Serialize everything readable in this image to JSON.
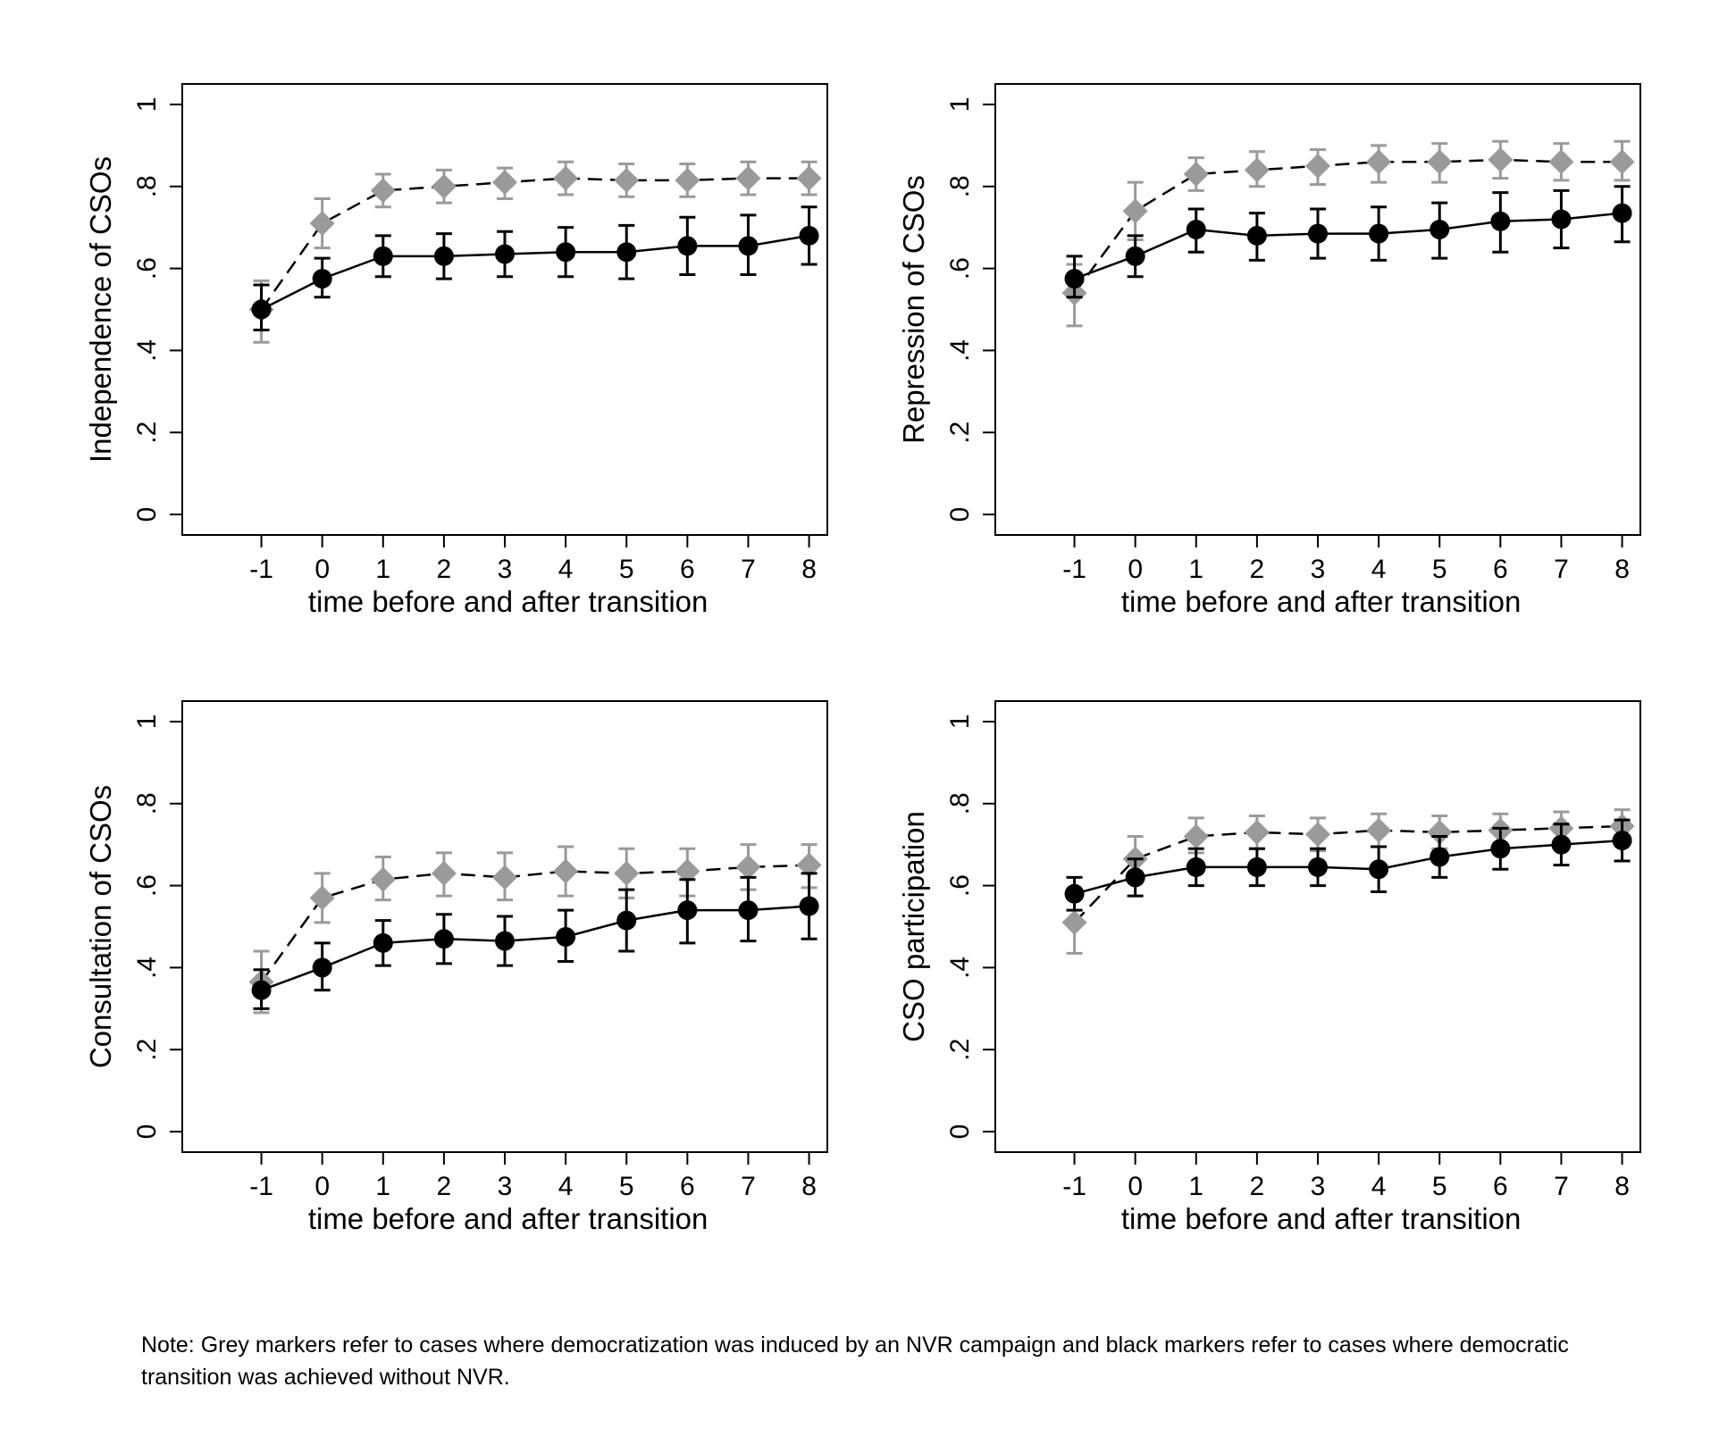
{
  "note": "Note: Grey markers refer to cases where democratization was induced by an NVR campaign and black markers refer to cases where democratic transition was achieved without NVR.",
  "colors": {
    "grey_series": "#9a9a9a",
    "black_series": "#000000",
    "frame": "#000000"
  },
  "chart_data": [
    {
      "type": "line",
      "ylabel": "Independence of CSOs",
      "xlabel": "time before and after transition",
      "x": [
        -1,
        0,
        1,
        2,
        3,
        4,
        5,
        6,
        7,
        8
      ],
      "x_tick_labels": [
        "-1",
        "0",
        "1",
        "2",
        "3",
        "4",
        "5",
        "6",
        "7",
        "8"
      ],
      "y_tick_labels": [
        "0",
        ".2",
        ".4",
        ".6",
        ".8",
        "1"
      ],
      "y_ticks": [
        0,
        0.2,
        0.4,
        0.6,
        0.8,
        1
      ],
      "ylim": [
        -0.05,
        1.05
      ],
      "xlim": [
        -2.3,
        8.3
      ],
      "grid": false,
      "series": [
        {
          "marker": "diamond",
          "color": "grey",
          "line": "dashed",
          "values": [
            0.5,
            0.71,
            0.79,
            0.8,
            0.81,
            0.82,
            0.815,
            0.815,
            0.82,
            0.82
          ],
          "ci_low": [
            0.42,
            0.65,
            0.75,
            0.76,
            0.77,
            0.78,
            0.775,
            0.775,
            0.78,
            0.78
          ],
          "ci_high": [
            0.57,
            0.77,
            0.83,
            0.84,
            0.845,
            0.86,
            0.855,
            0.855,
            0.86,
            0.86
          ]
        },
        {
          "marker": "circle",
          "color": "black",
          "line": "solid",
          "values": [
            0.5,
            0.575,
            0.63,
            0.63,
            0.635,
            0.64,
            0.64,
            0.655,
            0.655,
            0.68
          ],
          "ci_low": [
            0.45,
            0.53,
            0.58,
            0.575,
            0.58,
            0.58,
            0.575,
            0.585,
            0.585,
            0.61
          ],
          "ci_high": [
            0.56,
            0.625,
            0.68,
            0.685,
            0.69,
            0.7,
            0.705,
            0.725,
            0.73,
            0.75
          ]
        }
      ]
    },
    {
      "type": "line",
      "ylabel": "Repression of CSOs",
      "xlabel": "time before and after transition",
      "x": [
        -1,
        0,
        1,
        2,
        3,
        4,
        5,
        6,
        7,
        8
      ],
      "x_tick_labels": [
        "-1",
        "0",
        "1",
        "2",
        "3",
        "4",
        "5",
        "6",
        "7",
        "8"
      ],
      "y_tick_labels": [
        "0",
        ".2",
        ".4",
        ".6",
        ".8",
        "1"
      ],
      "y_ticks": [
        0,
        0.2,
        0.4,
        0.6,
        0.8,
        1
      ],
      "ylim": [
        -0.05,
        1.05
      ],
      "xlim": [
        -2.3,
        8.3
      ],
      "grid": false,
      "series": [
        {
          "marker": "diamond",
          "color": "grey",
          "line": "dashed",
          "values": [
            0.54,
            0.74,
            0.83,
            0.84,
            0.85,
            0.86,
            0.86,
            0.865,
            0.86,
            0.86
          ],
          "ci_low": [
            0.46,
            0.67,
            0.79,
            0.8,
            0.805,
            0.81,
            0.81,
            0.82,
            0.815,
            0.815
          ],
          "ci_high": [
            0.61,
            0.81,
            0.87,
            0.885,
            0.89,
            0.9,
            0.905,
            0.91,
            0.905,
            0.91
          ]
        },
        {
          "marker": "circle",
          "color": "black",
          "line": "solid",
          "values": [
            0.575,
            0.63,
            0.695,
            0.68,
            0.685,
            0.685,
            0.695,
            0.715,
            0.72,
            0.735
          ],
          "ci_low": [
            0.53,
            0.58,
            0.64,
            0.62,
            0.625,
            0.62,
            0.625,
            0.64,
            0.65,
            0.665
          ],
          "ci_high": [
            0.63,
            0.68,
            0.745,
            0.735,
            0.745,
            0.75,
            0.76,
            0.785,
            0.79,
            0.8
          ]
        }
      ]
    },
    {
      "type": "line",
      "ylabel": "Consultation of CSOs",
      "xlabel": "time before and after transition",
      "x": [
        -1,
        0,
        1,
        2,
        3,
        4,
        5,
        6,
        7,
        8
      ],
      "x_tick_labels": [
        "-1",
        "0",
        "1",
        "2",
        "3",
        "4",
        "5",
        "6",
        "7",
        "8"
      ],
      "y_tick_labels": [
        "0",
        ".2",
        ".4",
        ".6",
        ".8",
        "1"
      ],
      "y_ticks": [
        0,
        0.2,
        0.4,
        0.6,
        0.8,
        1
      ],
      "ylim": [
        -0.05,
        1.05
      ],
      "xlim": [
        -2.3,
        8.3
      ],
      "grid": false,
      "series": [
        {
          "marker": "diamond",
          "color": "grey",
          "line": "dashed",
          "values": [
            0.365,
            0.57,
            0.615,
            0.63,
            0.62,
            0.635,
            0.63,
            0.635,
            0.645,
            0.65
          ],
          "ci_low": [
            0.29,
            0.51,
            0.565,
            0.575,
            0.565,
            0.575,
            0.57,
            0.575,
            0.59,
            0.595
          ],
          "ci_high": [
            0.44,
            0.63,
            0.67,
            0.68,
            0.68,
            0.695,
            0.69,
            0.69,
            0.7,
            0.7
          ]
        },
        {
          "marker": "circle",
          "color": "black",
          "line": "solid",
          "values": [
            0.345,
            0.4,
            0.46,
            0.47,
            0.465,
            0.475,
            0.515,
            0.54,
            0.54,
            0.55
          ],
          "ci_low": [
            0.3,
            0.345,
            0.405,
            0.41,
            0.405,
            0.415,
            0.44,
            0.46,
            0.465,
            0.47
          ],
          "ci_high": [
            0.395,
            0.46,
            0.515,
            0.53,
            0.525,
            0.54,
            0.59,
            0.615,
            0.62,
            0.63
          ]
        }
      ]
    },
    {
      "type": "line",
      "ylabel": "CSO participation",
      "xlabel": "time before and after transition",
      "x": [
        -1,
        0,
        1,
        2,
        3,
        4,
        5,
        6,
        7,
        8
      ],
      "x_tick_labels": [
        "-1",
        "0",
        "1",
        "2",
        "3",
        "4",
        "5",
        "6",
        "7",
        "8"
      ],
      "y_tick_labels": [
        "0",
        ".2",
        ".4",
        ".6",
        ".8",
        "1"
      ],
      "y_ticks": [
        0,
        0.2,
        0.4,
        0.6,
        0.8,
        1
      ],
      "ylim": [
        -0.05,
        1.05
      ],
      "xlim": [
        -2.3,
        8.3
      ],
      "grid": false,
      "series": [
        {
          "marker": "diamond",
          "color": "grey",
          "line": "dashed",
          "values": [
            0.51,
            0.665,
            0.72,
            0.73,
            0.725,
            0.735,
            0.73,
            0.735,
            0.74,
            0.745
          ],
          "ci_low": [
            0.435,
            0.61,
            0.68,
            0.69,
            0.685,
            0.695,
            0.69,
            0.695,
            0.7,
            0.705
          ],
          "ci_high": [
            0.585,
            0.72,
            0.765,
            0.77,
            0.765,
            0.775,
            0.77,
            0.775,
            0.78,
            0.785
          ]
        },
        {
          "marker": "circle",
          "color": "black",
          "line": "solid",
          "values": [
            0.58,
            0.62,
            0.645,
            0.645,
            0.645,
            0.64,
            0.67,
            0.69,
            0.7,
            0.71
          ],
          "ci_low": [
            0.54,
            0.575,
            0.6,
            0.6,
            0.6,
            0.585,
            0.62,
            0.64,
            0.65,
            0.66
          ],
          "ci_high": [
            0.62,
            0.665,
            0.69,
            0.69,
            0.69,
            0.695,
            0.72,
            0.74,
            0.75,
            0.76
          ]
        }
      ]
    }
  ]
}
